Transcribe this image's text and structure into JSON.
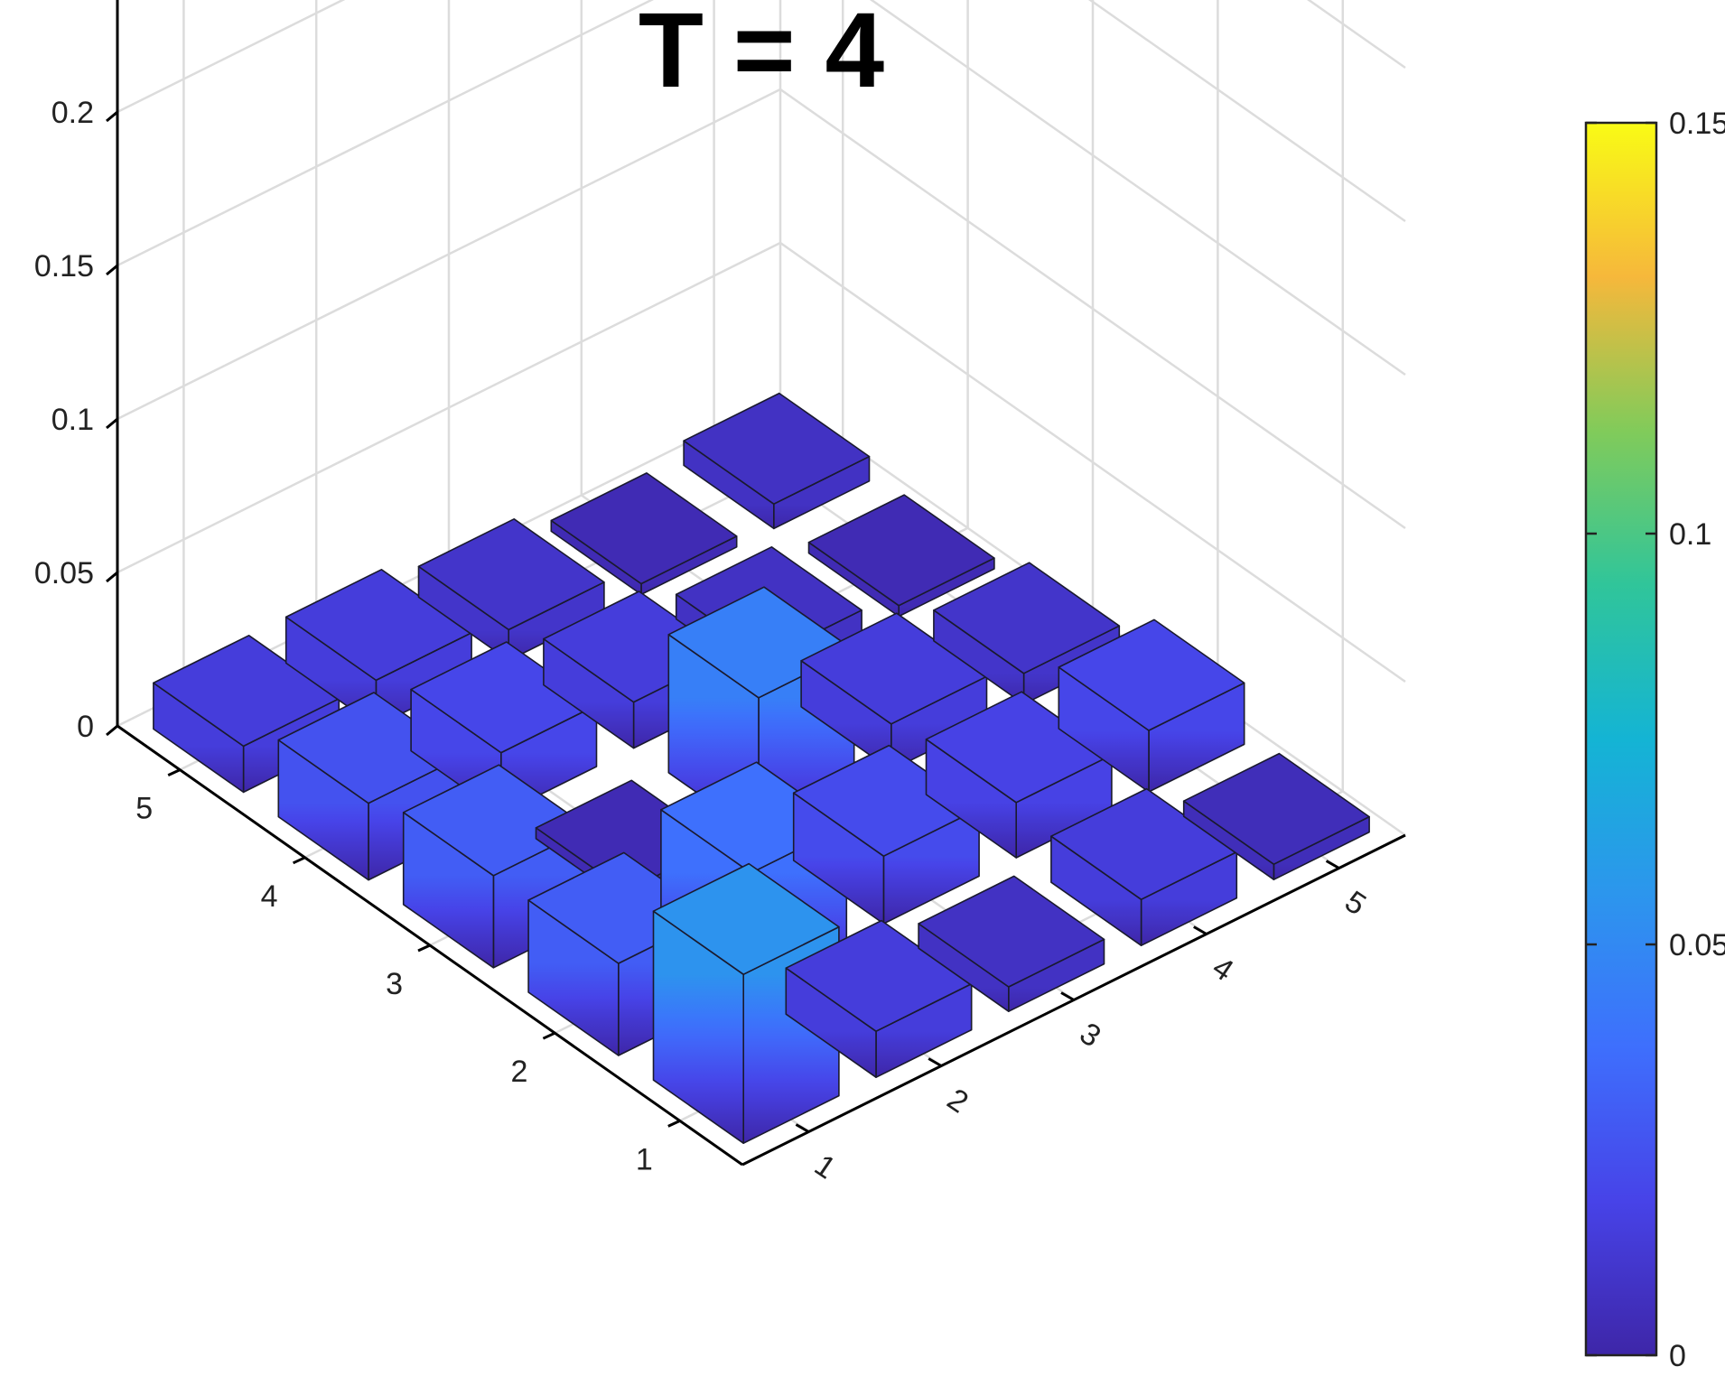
{
  "chart_data": {
    "type": "bar3",
    "title": "T = 4",
    "x_categories": [
      "1",
      "2",
      "3",
      "4",
      "5"
    ],
    "y_categories": [
      "1",
      "2",
      "3",
      "4",
      "5"
    ],
    "xlabel": "",
    "ylabel": "",
    "zlabel": "",
    "zlim": [
      0,
      0.3
    ],
    "z_ticks": [
      "0",
      "0.05",
      "0.1",
      "0.15",
      "0.2",
      "0.25",
      "0.3"
    ],
    "grid": true,
    "colormap": "parula",
    "colorbar": {
      "position": "right",
      "clim": [
        0,
        0.15
      ],
      "ticks": [
        "0",
        "0.05",
        "0.1",
        "0.15"
      ]
    },
    "values": [
      [
        0.055,
        0.015,
        0.008,
        0.015,
        0.005
      ],
      [
        0.03,
        0.038,
        0.022,
        0.018,
        0.02
      ],
      [
        0.03,
        0.0,
        0.045,
        0.015,
        0.01
      ],
      [
        0.025,
        0.02,
        0.015,
        0.008,
        0.003
      ],
      [
        0.015,
        0.015,
        0.01,
        0.0,
        0.008
      ]
    ],
    "values_note_removed": true
  }
}
